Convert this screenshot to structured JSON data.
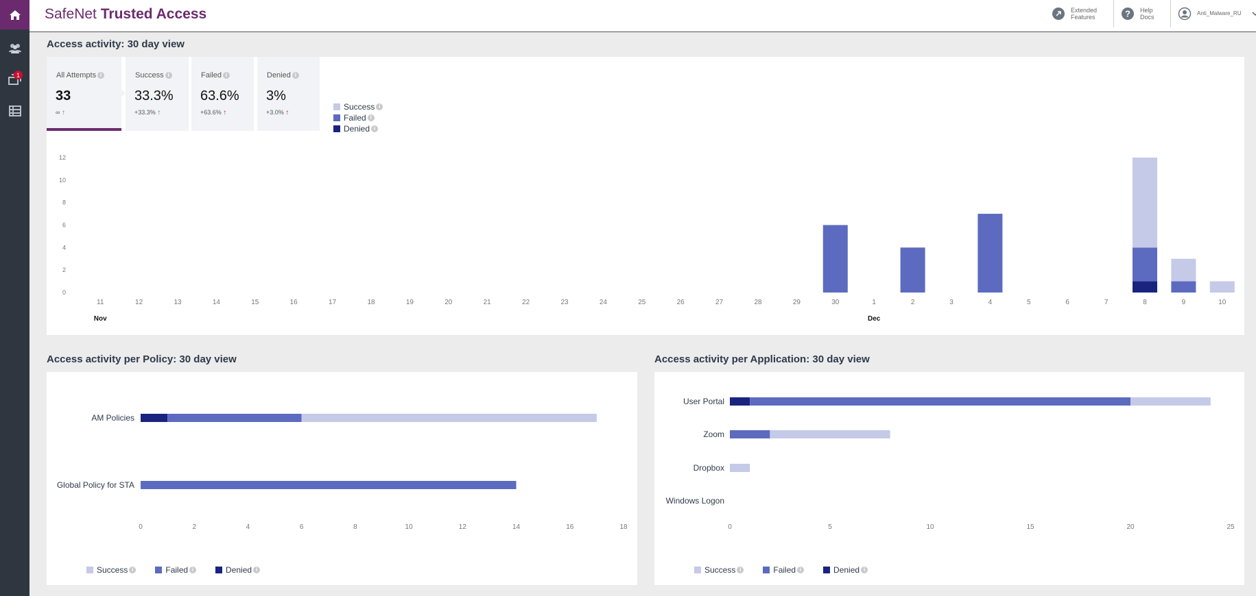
{
  "header": {
    "brand_light": "SafeNet",
    "brand_bold": "Trusted Access",
    "extended_features_line1": "Extended",
    "extended_features_line2": "Features",
    "help_docs_line1": "Help",
    "help_docs_line2": "Docs",
    "username": "Anti_Malware_RU"
  },
  "sidebar": {
    "notification_count": "1",
    "items": [
      "home-icon",
      "users-icon",
      "notifications-icon",
      "list-icon"
    ]
  },
  "colors": {
    "brand": "#6c2a6e",
    "success": "#c5cae9",
    "failed": "#5c6bc0",
    "denied": "#1a237e"
  },
  "activity": {
    "title": "Access activity: 30 day view",
    "cards": [
      {
        "label": "All Attempts",
        "value": "33",
        "change": "∞"
      },
      {
        "label": "Success",
        "value": "33.3%",
        "change": "+33.3%"
      },
      {
        "label": "Failed",
        "value": "63.6%",
        "change": "+63.6%"
      },
      {
        "label": "Denied",
        "value": "3%",
        "change": "+3.0%"
      }
    ],
    "legend": [
      "Success",
      "Failed",
      "Denied"
    ]
  },
  "policy": {
    "title": "Access activity per Policy: 30 day view",
    "legend": [
      "Success",
      "Failed",
      "Denied"
    ]
  },
  "application": {
    "title": "Access activity per Application: 30 day view",
    "legend": [
      "Success",
      "Failed",
      "Denied"
    ]
  },
  "chart_data": [
    {
      "type": "bar",
      "stacked": true,
      "categories": [
        "11",
        "12",
        "13",
        "14",
        "15",
        "16",
        "17",
        "18",
        "19",
        "20",
        "21",
        "22",
        "23",
        "24",
        "25",
        "26",
        "27",
        "28",
        "29",
        "30",
        "1",
        "2",
        "3",
        "4",
        "5",
        "6",
        "7",
        "8",
        "9",
        "10"
      ],
      "month_labels": [
        {
          "label": "Nov",
          "index": 0
        },
        {
          "label": "Dec",
          "index": 20
        }
      ],
      "series": [
        {
          "name": "Success",
          "values": [
            0,
            0,
            0,
            0,
            0,
            0,
            0,
            0,
            0,
            0,
            0,
            0,
            0,
            0,
            0,
            0,
            0,
            0,
            0,
            0,
            0,
            0,
            0,
            0,
            0,
            0,
            0,
            8,
            2,
            1
          ]
        },
        {
          "name": "Failed",
          "values": [
            0,
            0,
            0,
            0,
            0,
            0,
            0,
            0,
            0,
            0,
            0,
            0,
            0,
            0,
            0,
            0,
            0,
            0,
            0,
            6,
            0,
            4,
            0,
            7,
            0,
            0,
            0,
            3,
            1,
            0
          ]
        },
        {
          "name": "Denied",
          "values": [
            0,
            0,
            0,
            0,
            0,
            0,
            0,
            0,
            0,
            0,
            0,
            0,
            0,
            0,
            0,
            0,
            0,
            0,
            0,
            0,
            0,
            0,
            0,
            0,
            0,
            0,
            0,
            1,
            0,
            0
          ]
        }
      ],
      "ylim": [
        0,
        12
      ],
      "yticks": [
        0,
        2,
        4,
        6,
        8,
        10,
        12
      ],
      "grid": false
    },
    {
      "type": "bar",
      "orientation": "horizontal",
      "stacked": true,
      "categories": [
        "AM Policies",
        "Global Policy for STA"
      ],
      "series": [
        {
          "name": "Denied",
          "values": [
            1,
            0
          ]
        },
        {
          "name": "Failed",
          "values": [
            5,
            14
          ]
        },
        {
          "name": "Success",
          "values": [
            11,
            0
          ]
        }
      ],
      "xlim": [
        0,
        18
      ],
      "xticks": [
        0,
        2,
        4,
        6,
        8,
        10,
        12,
        14,
        16,
        18
      ],
      "legend": "bottom-left"
    },
    {
      "type": "bar",
      "orientation": "horizontal",
      "stacked": true,
      "categories": [
        "User Portal",
        "Zoom",
        "Dropbox",
        "Windows Logon"
      ],
      "series": [
        {
          "name": "Denied",
          "values": [
            1,
            0,
            0,
            0
          ]
        },
        {
          "name": "Failed",
          "values": [
            19,
            2,
            0,
            0
          ]
        },
        {
          "name": "Success",
          "values": [
            4,
            6,
            1,
            0
          ]
        }
      ],
      "xlim": [
        0,
        25
      ],
      "xticks": [
        0,
        5,
        10,
        15,
        20,
        25
      ],
      "legend": "bottom-left"
    }
  ]
}
